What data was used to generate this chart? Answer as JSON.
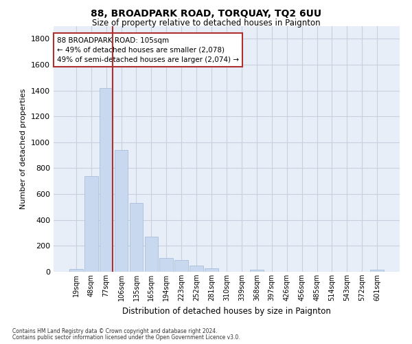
{
  "title": "88, BROADPARK ROAD, TORQUAY, TQ2 6UU",
  "subtitle": "Size of property relative to detached houses in Paignton",
  "xlabel": "Distribution of detached houses by size in Paignton",
  "ylabel": "Number of detached properties",
  "footnote1": "Contains HM Land Registry data © Crown copyright and database right 2024.",
  "footnote2": "Contains public sector information licensed under the Open Government Licence v3.0.",
  "categories": [
    "19sqm",
    "48sqm",
    "77sqm",
    "106sqm",
    "135sqm",
    "165sqm",
    "194sqm",
    "223sqm",
    "252sqm",
    "281sqm",
    "310sqm",
    "339sqm",
    "368sqm",
    "397sqm",
    "426sqm",
    "456sqm",
    "485sqm",
    "514sqm",
    "543sqm",
    "572sqm",
    "601sqm"
  ],
  "values": [
    22,
    740,
    1420,
    940,
    530,
    270,
    104,
    92,
    48,
    27,
    0,
    0,
    14,
    0,
    0,
    0,
    0,
    0,
    0,
    0,
    14
  ],
  "bar_color": "#c8d8ee",
  "bar_edge_color": "#a0b8d8",
  "highlight_line_color": "#b03030",
  "annotation_line1": "88 BROADPARK ROAD: 105sqm",
  "annotation_line2": "← 49% of detached houses are smaller (2,078)",
  "annotation_line3": "49% of semi-detached houses are larger (2,074) →",
  "annotation_box_color": "#b03030",
  "ylim": [
    0,
    1900
  ],
  "yticks": [
    0,
    200,
    400,
    600,
    800,
    1000,
    1200,
    1400,
    1600,
    1800
  ],
  "grid_color": "#c8d0e0",
  "bg_color": "#e8eef8"
}
